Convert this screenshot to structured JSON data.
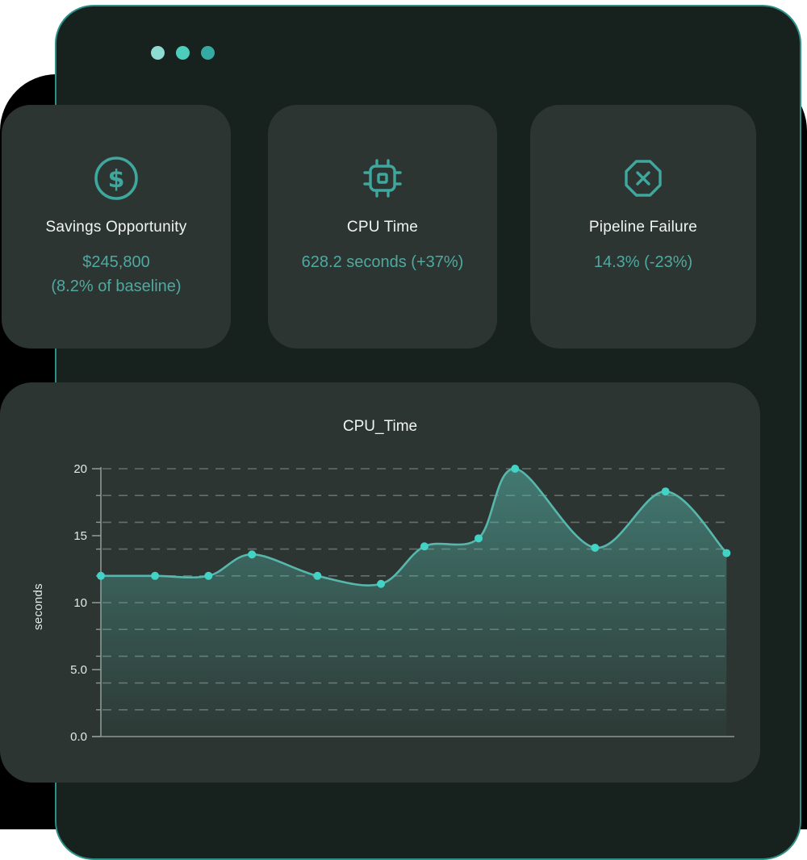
{
  "window": {
    "dots": [
      "#8edbd2",
      "#4fcdbb",
      "#35aaa4"
    ]
  },
  "cards": [
    {
      "icon": "dollar-circle-icon",
      "title": "Savings Opportunity",
      "value_lines": [
        "$245,800",
        "(8.2% of baseline)"
      ]
    },
    {
      "icon": "cpu-chip-icon",
      "title": "CPU Time",
      "value_lines": [
        "628.2 seconds (+37%)"
      ]
    },
    {
      "icon": "octagon-x-icon",
      "title": "Pipeline Failure",
      "value_lines": [
        "14.3% (-23%)"
      ]
    }
  ],
  "chart_data": {
    "type": "area",
    "title": "CPU_Time",
    "xlabel": "",
    "ylabel": "seconds",
    "ylim": [
      0,
      20
    ],
    "yticks": [
      {
        "value": 0,
        "label": "0.0"
      },
      {
        "value": 5,
        "label": "5.0"
      },
      {
        "value": 10,
        "label": "10"
      },
      {
        "value": 15,
        "label": "15"
      },
      {
        "value": 20,
        "label": "20"
      }
    ],
    "x_axis_labels": "none",
    "grid": {
      "style": "dashed",
      "horizontal_every": 2
    },
    "legend": "none",
    "series_name": "CPU_Time (seconds)",
    "points": [
      {
        "x_frac": 0.0,
        "value": 12.0
      },
      {
        "x_frac": 0.086,
        "value": 12.0
      },
      {
        "x_frac": 0.171,
        "value": 12.0
      },
      {
        "x_frac": 0.24,
        "value": 13.6
      },
      {
        "x_frac": 0.344,
        "value": 12.0
      },
      {
        "x_frac": 0.445,
        "value": 11.4
      },
      {
        "x_frac": 0.514,
        "value": 14.2
      },
      {
        "x_frac": 0.6,
        "value": 14.8
      },
      {
        "x_frac": 0.658,
        "value": 20.0
      },
      {
        "x_frac": 0.785,
        "value": 14.1
      },
      {
        "x_frac": 0.897,
        "value": 18.3
      },
      {
        "x_frac": 0.994,
        "value": 13.7
      }
    ]
  },
  "colors": {
    "accent": "#4fa9a1",
    "icon": "#3fa79d",
    "window_bg": "#17211d",
    "panel_bg": "#2c3531",
    "border_teal": "#2e8e88",
    "title_color": "#f1f4f3",
    "tick_color": "#e4e9e7",
    "grid_color": "#95a09b",
    "axis_color": "#8d9793",
    "line_color": "#57b7ac",
    "marker_color": "#41d3c5",
    "fill_color": "#58bdb2",
    "backdrop": "#000000",
    "page_bg": "#ffffff"
  }
}
